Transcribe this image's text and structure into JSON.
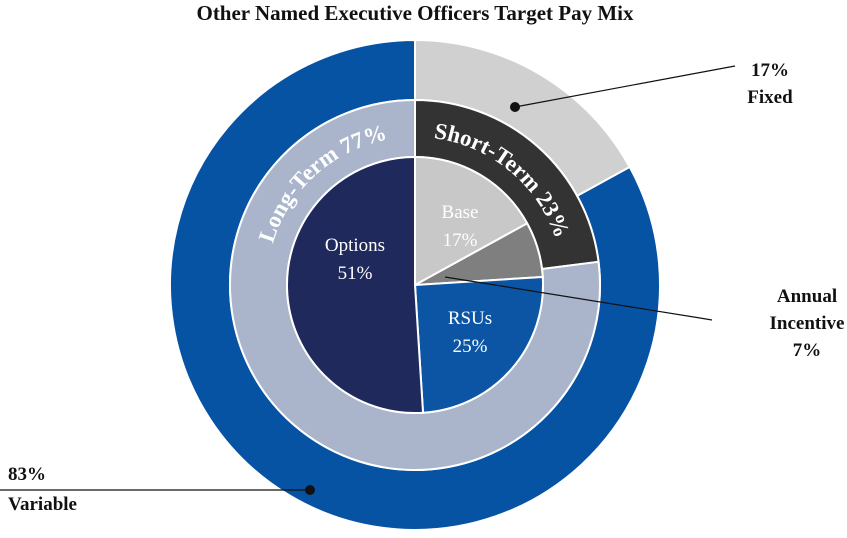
{
  "chart_data": {
    "type": "nested-donut",
    "title": "Other Named Executive Officers Target Pay Mix",
    "rings": [
      {
        "categories": [
          "Fixed",
          "Variable"
        ],
        "values": [
          17,
          83
        ],
        "value_labels": [
          "17%",
          "83%"
        ],
        "colors": [
          "#d0d0d0",
          "#0653a4"
        ]
      },
      {
        "categories": [
          "Short-Term",
          "Long-Term"
        ],
        "values": [
          23,
          77
        ],
        "value_labels": [
          "23%",
          "77%"
        ],
        "colors": [
          "#333333",
          "#aab5cb"
        ]
      },
      {
        "categories": [
          "Base",
          "Annual Incentive",
          "RSUs",
          "Options"
        ],
        "values": [
          17,
          7,
          25,
          51
        ],
        "value_labels": [
          "17%",
          "7%",
          "25%",
          "51%"
        ],
        "colors": [
          "#c8c8c8",
          "#7f7f7f",
          "#0b55a4",
          "#20295c"
        ]
      }
    ]
  }
}
